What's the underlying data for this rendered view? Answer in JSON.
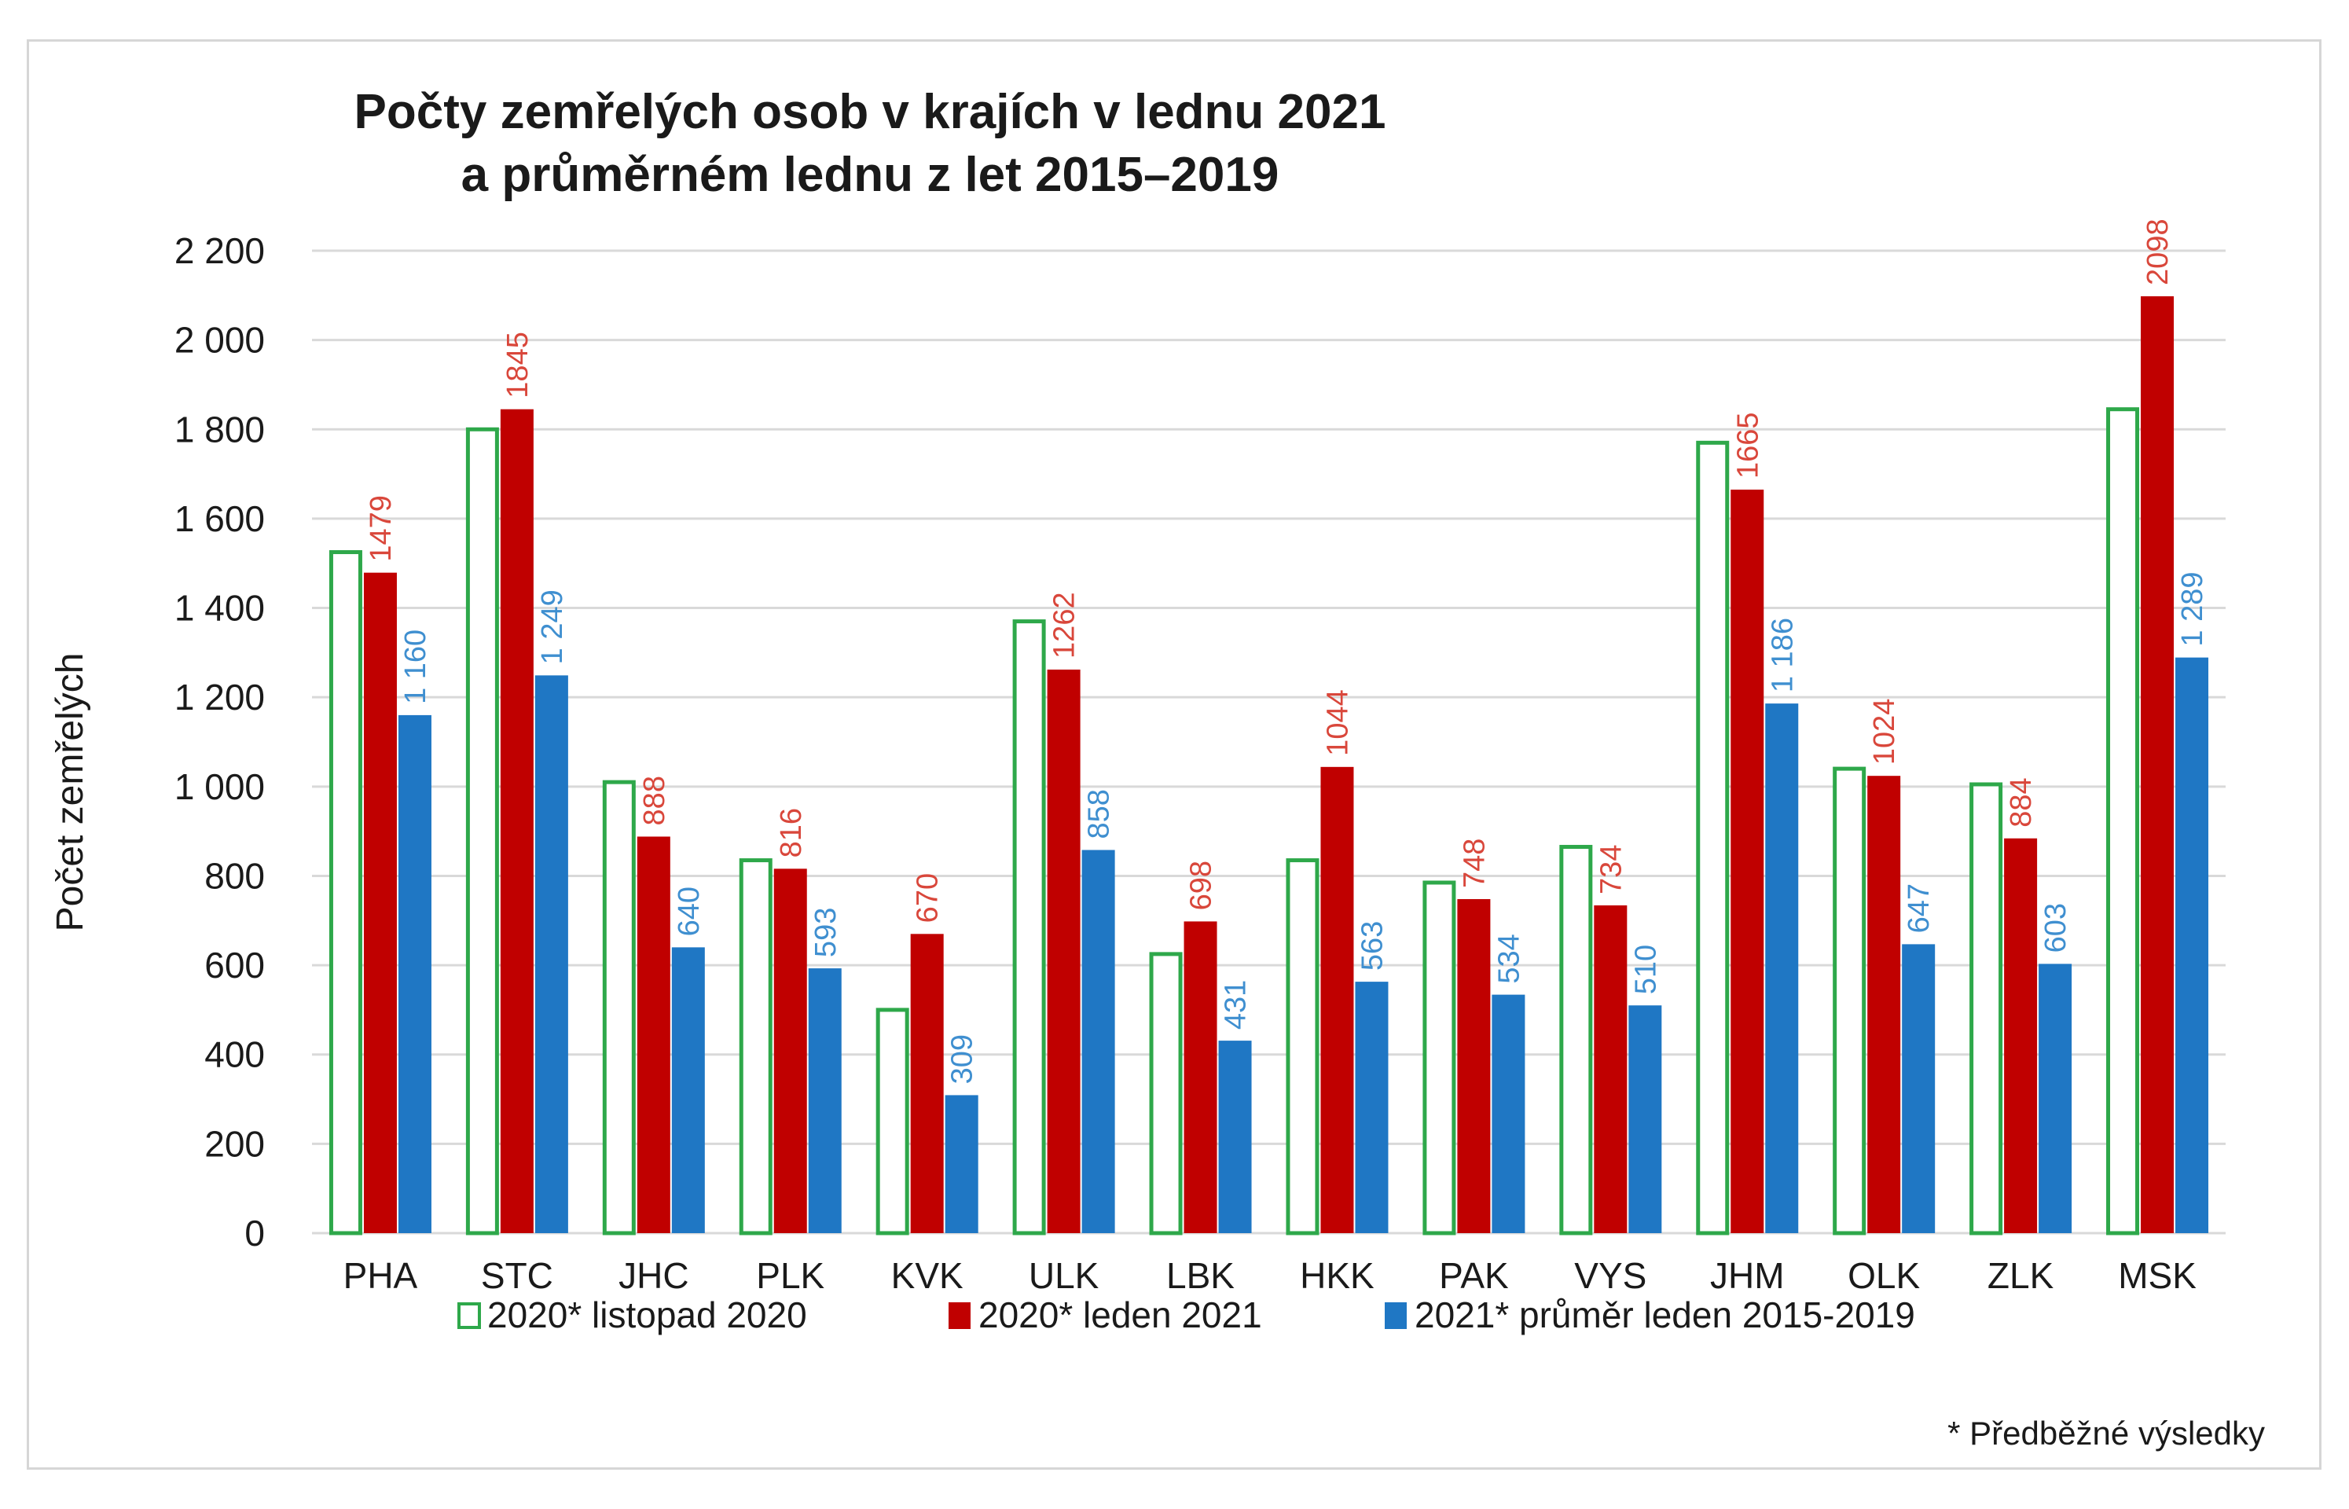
{
  "chart_data": {
    "type": "bar",
    "title_lines": [
      "Počty zemřelých osob v krajích v lednu 2021",
      "a průměrném lednu z let 2015–2019"
    ],
    "ylabel": "Počet zemřelých",
    "xlabel": "",
    "ylim": [
      0,
      2200
    ],
    "y_ticks": [
      0,
      200,
      400,
      600,
      800,
      1000,
      1200,
      1400,
      1600,
      1800,
      2000,
      2200
    ],
    "y_tick_labels": [
      "0",
      "200",
      "400",
      "600",
      "800",
      "1 000",
      "1 200",
      "1 400",
      "1 600",
      "1 800",
      "2 000",
      "2 200"
    ],
    "grid": true,
    "legend_position": "bottom",
    "categories": [
      "PHA",
      "STC",
      "JHC",
      "PLK",
      "KVK",
      "ULK",
      "LBK",
      "HKK",
      "PAK",
      "VYS",
      "JHM",
      "OLK",
      "ZLK",
      "MSK"
    ],
    "series": [
      {
        "name": "2020* listopad 2020",
        "style": "outline",
        "color": "#2ea84a",
        "values": [
          1525,
          1800,
          1010,
          835,
          500,
          1370,
          625,
          835,
          785,
          865,
          1770,
          1040,
          1005,
          1845
        ],
        "labels": null
      },
      {
        "name": "2020* leden 2021",
        "style": "filled",
        "color": "#c00000",
        "label_color": "#d9473b",
        "values": [
          1479,
          1845,
          888,
          816,
          670,
          1262,
          698,
          1044,
          748,
          734,
          1665,
          1024,
          884,
          2098
        ],
        "labels": [
          "1479",
          "1845",
          "888",
          "816",
          "670",
          "1262",
          "698",
          "1044",
          "748",
          "734",
          "1665",
          "1024",
          "884",
          "2098"
        ]
      },
      {
        "name": "2021* průměr leden 2015-2019",
        "style": "filled",
        "color": "#1f77c4",
        "label_color": "#3f8fd0",
        "values": [
          1160,
          1249,
          640,
          593,
          309,
          858,
          431,
          563,
          534,
          510,
          1186,
          647,
          603,
          1289
        ],
        "labels": [
          "1 160",
          "1 249",
          "640",
          "593",
          "309",
          "858",
          "431",
          "563",
          "534",
          "510",
          "1 186",
          "647",
          "603",
          "1 289"
        ]
      }
    ],
    "footnote": "* Předběžné výsledky"
  }
}
